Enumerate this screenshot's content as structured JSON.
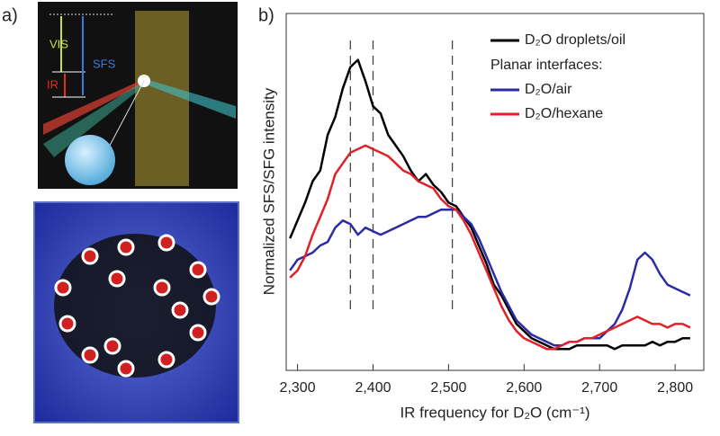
{
  "panel_a": {
    "label": "a)",
    "energy_labels": [
      "VIS",
      "SFS",
      "IR"
    ]
  },
  "chart_data": {
    "type": "line",
    "panel_label": "b)",
    "xlabel": "IR frequency for D₂O (cm⁻¹)",
    "ylabel": "Normalized SFS/SFG intensity",
    "legend_subheading": "Planar interfaces:",
    "x": [
      2290,
      2300,
      2310,
      2320,
      2330,
      2340,
      2350,
      2360,
      2370,
      2380,
      2390,
      2400,
      2410,
      2420,
      2430,
      2440,
      2450,
      2460,
      2470,
      2480,
      2490,
      2500,
      2510,
      2520,
      2530,
      2540,
      2550,
      2560,
      2570,
      2580,
      2590,
      2600,
      2610,
      2620,
      2630,
      2640,
      2650,
      2660,
      2670,
      2680,
      2690,
      2700,
      2710,
      2720,
      2730,
      2740,
      2750,
      2760,
      2770,
      2780,
      2790,
      2800,
      2810,
      2820
    ],
    "series": [
      {
        "name": "D₂O droplets/oil",
        "color": "#000000",
        "values": [
          0.37,
          0.42,
          0.47,
          0.53,
          0.56,
          0.66,
          0.71,
          0.79,
          0.85,
          0.87,
          0.81,
          0.74,
          0.72,
          0.66,
          0.63,
          0.6,
          0.56,
          0.53,
          0.55,
          0.52,
          0.5,
          0.47,
          0.46,
          0.43,
          0.4,
          0.35,
          0.3,
          0.24,
          0.21,
          0.17,
          0.13,
          0.11,
          0.09,
          0.08,
          0.07,
          0.06,
          0.06,
          0.06,
          0.07,
          0.07,
          0.07,
          0.07,
          0.07,
          0.06,
          0.07,
          0.07,
          0.07,
          0.07,
          0.08,
          0.07,
          0.08,
          0.08,
          0.09,
          0.09
        ]
      },
      {
        "name": "D₂O/air",
        "color": "#2b2ca3",
        "values": [
          0.28,
          0.31,
          0.32,
          0.33,
          0.35,
          0.36,
          0.4,
          0.42,
          0.41,
          0.38,
          0.4,
          0.39,
          0.38,
          0.39,
          0.4,
          0.41,
          0.42,
          0.43,
          0.43,
          0.44,
          0.45,
          0.45,
          0.45,
          0.43,
          0.41,
          0.37,
          0.32,
          0.27,
          0.22,
          0.18,
          0.14,
          0.12,
          0.1,
          0.09,
          0.08,
          0.07,
          0.07,
          0.08,
          0.08,
          0.09,
          0.09,
          0.09,
          0.11,
          0.13,
          0.17,
          0.23,
          0.31,
          0.33,
          0.31,
          0.27,
          0.24,
          0.23,
          0.22,
          0.21
        ]
      },
      {
        "name": "D₂O/hexane",
        "color": "#e0202a",
        "values": [
          0.26,
          0.28,
          0.32,
          0.38,
          0.43,
          0.48,
          0.55,
          0.58,
          0.61,
          0.62,
          0.63,
          0.62,
          0.61,
          0.6,
          0.58,
          0.56,
          0.55,
          0.53,
          0.52,
          0.51,
          0.48,
          0.46,
          0.45,
          0.42,
          0.38,
          0.33,
          0.28,
          0.23,
          0.18,
          0.14,
          0.11,
          0.09,
          0.08,
          0.07,
          0.06,
          0.06,
          0.07,
          0.08,
          0.08,
          0.09,
          0.09,
          0.1,
          0.11,
          0.12,
          0.13,
          0.14,
          0.15,
          0.14,
          0.13,
          0.13,
          0.12,
          0.13,
          0.13,
          0.12
        ]
      }
    ],
    "vlines": [
      2370,
      2400,
      2505
    ],
    "xlim": [
      2285,
      2838
    ],
    "ylim": [
      0,
      1
    ],
    "xticks": [
      {
        "value": 2300,
        "label": "2,300"
      },
      {
        "value": 2400,
        "label": "2,400"
      },
      {
        "value": 2500,
        "label": "2,500"
      },
      {
        "value": 2600,
        "label": "2,600"
      },
      {
        "value": 2700,
        "label": "2,700"
      },
      {
        "value": 2800,
        "label": "2,800"
      }
    ]
  }
}
